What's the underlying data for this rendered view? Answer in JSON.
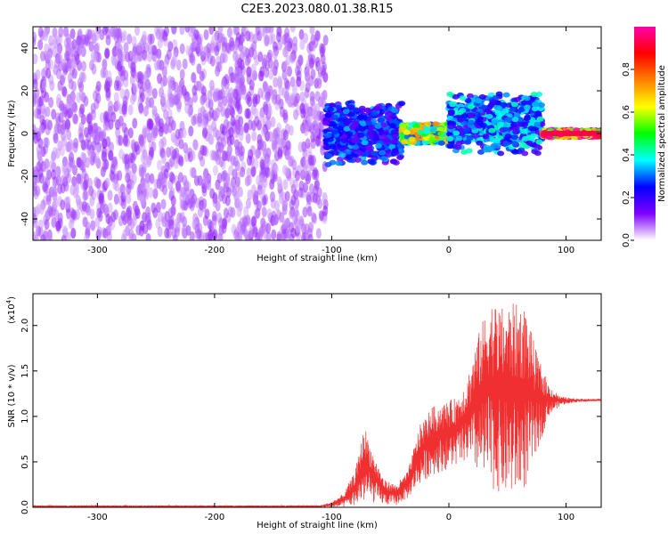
{
  "title": "C2E3.2023.080.01.38.R15",
  "chart_data": [
    {
      "type": "heatmap",
      "xlabel": "Height of straight line (km)",
      "ylabel": "Frequency (Hz)",
      "xlim": [
        -355,
        130
      ],
      "ylim": [
        -50,
        50
      ],
      "xticks": [
        -300,
        -200,
        -100,
        0,
        100
      ],
      "yticks": [
        -40,
        -20,
        0,
        20,
        40
      ],
      "colorbar": {
        "label": "Normalized spectral amplitude",
        "range": [
          0,
          1
        ],
        "ticks": [
          "0.0",
          "0.2",
          "0.4",
          "0.6",
          "0.8"
        ],
        "colormap": [
          "#ffffff",
          "#8000ff",
          "#0000ff",
          "#00ffff",
          "#00ff00",
          "#ffff00",
          "#ff8000",
          "#ff0000",
          "#ff00aa"
        ]
      },
      "regions": [
        {
          "x": [
            -355,
            -105
          ],
          "freq_band": [
            -50,
            50
          ],
          "amplitude": 0.08
        },
        {
          "x": [
            -105,
            -40
          ],
          "freq_band": [
            -15,
            15
          ],
          "amplitude": 0.25
        },
        {
          "x": [
            -40,
            0
          ],
          "freq_band": [
            -5,
            5
          ],
          "amplitude": 0.55
        },
        {
          "x": [
            0,
            80
          ],
          "freq_band": [
            -10,
            20
          ],
          "amplitude": 0.3
        },
        {
          "x": [
            80,
            130
          ],
          "freq_band": [
            -2,
            2
          ],
          "amplitude": 0.9
        }
      ]
    },
    {
      "type": "line",
      "xlabel": "Height of straight line (km)",
      "ylabel": "SNR (10 * v/v)",
      "yscale_label": "(x10",
      "yscale_exp": "4",
      "yscale_close": ")",
      "xlim": [
        -355,
        130
      ],
      "ylim": [
        0,
        2.35
      ],
      "xticks": [
        -300,
        -200,
        -100,
        0,
        100
      ],
      "yticks": [
        "0.0",
        "0.5",
        "1.0",
        "1.5",
        "2.0"
      ],
      "color": "#f03030",
      "envelope": [
        {
          "x": -355,
          "lo": 0.0,
          "hi": 0.02
        },
        {
          "x": -110,
          "lo": 0.0,
          "hi": 0.02
        },
        {
          "x": -100,
          "lo": 0.0,
          "hi": 0.06
        },
        {
          "x": -90,
          "lo": 0.0,
          "hi": 0.15
        },
        {
          "x": -80,
          "lo": 0.02,
          "hi": 0.4
        },
        {
          "x": -72,
          "lo": 0.05,
          "hi": 0.9
        },
        {
          "x": -65,
          "lo": 0.05,
          "hi": 0.6
        },
        {
          "x": -55,
          "lo": 0.03,
          "hi": 0.3
        },
        {
          "x": -45,
          "lo": 0.02,
          "hi": 0.25
        },
        {
          "x": -35,
          "lo": 0.1,
          "hi": 0.4
        },
        {
          "x": -25,
          "lo": 0.25,
          "hi": 0.9
        },
        {
          "x": -15,
          "lo": 0.35,
          "hi": 1.1
        },
        {
          "x": -5,
          "lo": 0.4,
          "hi": 1.15
        },
        {
          "x": 5,
          "lo": 0.45,
          "hi": 1.2
        },
        {
          "x": 15,
          "lo": 0.5,
          "hi": 1.4
        },
        {
          "x": 25,
          "lo": 0.35,
          "hi": 1.9
        },
        {
          "x": 35,
          "lo": 0.2,
          "hi": 2.3
        },
        {
          "x": 45,
          "lo": 0.15,
          "hi": 2.2
        },
        {
          "x": 55,
          "lo": 0.1,
          "hi": 2.25
        },
        {
          "x": 65,
          "lo": 0.2,
          "hi": 2.2
        },
        {
          "x": 75,
          "lo": 0.6,
          "hi": 1.7
        },
        {
          "x": 85,
          "lo": 1.0,
          "hi": 1.35
        },
        {
          "x": 95,
          "lo": 1.12,
          "hi": 1.22
        },
        {
          "x": 105,
          "lo": 1.15,
          "hi": 1.2
        },
        {
          "x": 130,
          "lo": 1.17,
          "hi": 1.19
        }
      ]
    }
  ]
}
